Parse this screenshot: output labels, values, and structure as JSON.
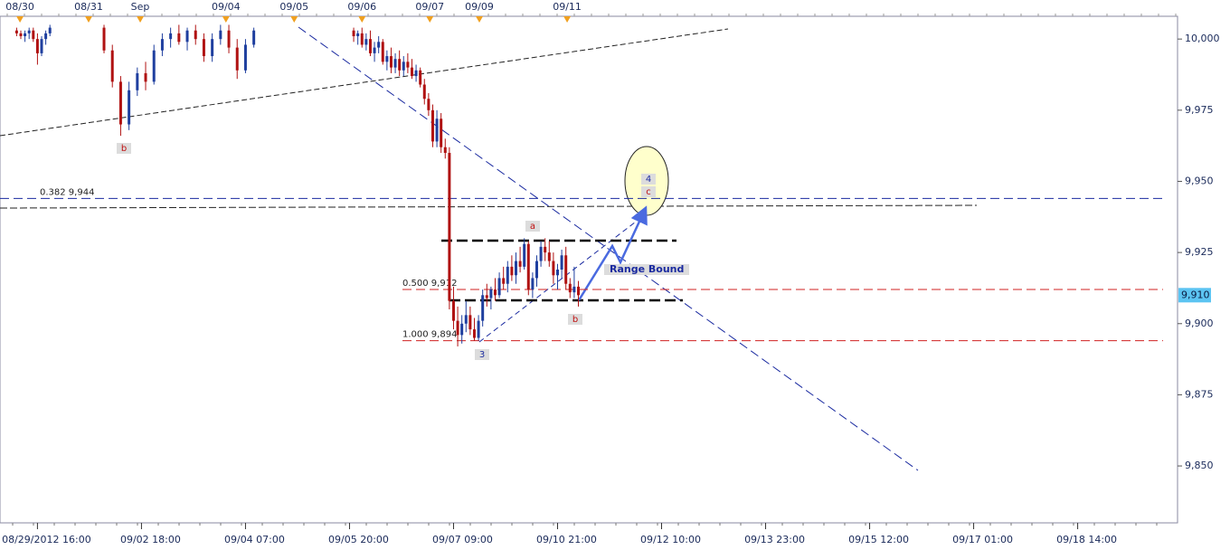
{
  "chart_data": {
    "type": "candlestick",
    "up_color": "#1f3f9f",
    "down_color": "#b01212",
    "xlim": [
      -9,
      274
    ],
    "ylim": [
      9830,
      10008
    ],
    "yticks": [
      {
        "value": 9850,
        "label": "9,850"
      },
      {
        "value": 9875,
        "label": "9,875"
      },
      {
        "value": 9900,
        "label": "9,900"
      },
      {
        "value": 9925,
        "label": "9,925"
      },
      {
        "value": 9950,
        "label": "9,950"
      },
      {
        "value": 9975,
        "label": "9,975"
      },
      {
        "value": 10000,
        "label": "10,000"
      }
    ],
    "xticks": [
      {
        "value": 0,
        "label": "08/29/2012 16:00"
      },
      {
        "value": 25,
        "label": "09/02 18:00"
      },
      {
        "value": 50,
        "label": "09/04 07:00"
      },
      {
        "value": 75,
        "label": "09/05 20:00"
      },
      {
        "value": 100,
        "label": "09/07 09:00"
      },
      {
        "value": 125,
        "label": "09/10 21:00"
      },
      {
        "value": 150,
        "label": "09/12 10:00"
      },
      {
        "value": 175,
        "label": "09/13 23:00"
      },
      {
        "value": 200,
        "label": "09/15 12:00"
      },
      {
        "value": 225,
        "label": "09/17 01:00"
      },
      {
        "value": 250,
        "label": "09/18 14:00"
      }
    ],
    "top_xticks": [
      {
        "value": -4.2,
        "label": "08/30"
      },
      {
        "value": 12.3,
        "label": "08/31"
      },
      {
        "value": 24.7,
        "label": "Sep"
      },
      {
        "value": 45.3,
        "label": "09/04"
      },
      {
        "value": 61.7,
        "label": "09/05"
      },
      {
        "value": 78,
        "label": "09/06"
      },
      {
        "value": 94.3,
        "label": "09/07"
      },
      {
        "value": 106.2,
        "label": "09/09"
      },
      {
        "value": 127.3,
        "label": "09/11"
      }
    ],
    "x": [
      -5,
      -4,
      -3,
      -2,
      -1,
      0,
      1,
      2,
      3,
      16,
      18,
      20,
      22,
      24,
      26,
      28,
      30,
      32,
      34,
      36,
      38,
      40,
      42,
      44,
      46,
      48,
      50,
      52,
      76,
      77,
      78,
      79,
      80,
      81,
      82,
      83,
      84,
      85,
      86,
      87,
      88,
      89,
      90,
      91,
      92,
      93,
      94,
      95,
      96,
      97,
      98,
      99,
      100,
      101,
      102,
      103,
      104,
      105,
      106,
      107,
      108,
      109,
      110,
      111,
      112,
      113,
      114,
      115,
      116,
      117,
      118,
      119,
      120,
      121,
      122,
      123,
      124,
      125,
      126,
      127,
      128,
      129,
      130
    ],
    "open": [
      10003,
      10002,
      10001,
      10002,
      10003,
      10000,
      9995,
      10000,
      10002,
      10004,
      9996,
      9985,
      9970,
      9982,
      9988,
      9985,
      9996,
      10000,
      10002,
      9999,
      10003,
      10000,
      9994,
      10000,
      10003,
      9997,
      9989,
      9998,
      10003,
      10001,
      10002,
      9998,
      10000,
      9995,
      9997,
      9999,
      9992,
      9994,
      9990,
      9993,
      9989,
      9992,
      9990,
      9987,
      9989,
      9984,
      9979,
      9975,
      9964,
      9972,
      9962,
      9960,
      9908,
      9901,
      9896,
      9900,
      9903,
      9898,
      9895,
      9901,
      9910,
      9909,
      9912,
      9910,
      9916,
      9914,
      9920,
      9917,
      9922,
      9920,
      9928,
      9912,
      9916,
      9922,
      9927,
      9925,
      9922,
      9917,
      9919,
      9924,
      9914,
      9911,
      9913
    ],
    "high": [
      10004,
      10003,
      10003,
      10004,
      10004,
      10002,
      10001,
      10003,
      10005,
      10005,
      9998,
      9987,
      9985,
      9990,
      9992,
      9998,
      10002,
      10004,
      10005,
      10004,
      10005,
      10002,
      10002,
      10005,
      10005,
      10000,
      10000,
      10004,
      10004,
      10003,
      10004,
      10002,
      10003,
      9999,
      10001,
      10000,
      9996,
      9997,
      9995,
      9996,
      9994,
      9995,
      9993,
      9991,
      9990,
      9986,
      9981,
      9977,
      9975,
      9974,
      9965,
      9962,
      9913,
      9906,
      9903,
      9908,
      9906,
      9902,
      9903,
      9912,
      9914,
      9913,
      9916,
      9918,
      9920,
      9922,
      9924,
      9925,
      9927,
      9930,
      9929,
      9918,
      9924,
      9929,
      9930,
      9929,
      9925,
      9921,
      9926,
      9927,
      9916,
      9920,
      9915
    ],
    "low": [
      10001,
      10000,
      9999,
      10000,
      9999,
      9991,
      9994,
      9998,
      10001,
      9995,
      9983,
      9966,
      9968,
      9980,
      9982,
      9984,
      9994,
      9997,
      9998,
      9996,
      9998,
      9992,
      9992,
      9998,
      9995,
      9986,
      9988,
      9997,
      9999,
      9998,
      9997,
      9996,
      9994,
      9992,
      9995,
      9991,
      9989,
      9988,
      9988,
      9987,
      9987,
      9988,
      9986,
      9985,
      9983,
      9977,
      9973,
      9962,
      9962,
      9960,
      9958,
      9905,
      9898,
      9892,
      9893,
      9897,
      9896,
      9894,
      9894,
      9899,
      9906,
      9905,
      9908,
      9909,
      9912,
      9911,
      9915,
      9914,
      9918,
      9919,
      9910,
      9909,
      9913,
      9920,
      9922,
      9920,
      9914,
      9912,
      9916,
      9912,
      9909,
      9909,
      9906
    ],
    "close": [
      10002,
      10001,
      10002,
      10003,
      10000,
      9995,
      10000,
      10002,
      10004,
      9996,
      9985,
      9970,
      9982,
      9988,
      9985,
      9996,
      10000,
      10002,
      9999,
      10003,
      10000,
      9994,
      10000,
      10003,
      9997,
      9989,
      9998,
      10003,
      10001,
      10002,
      9998,
      10000,
      9995,
      9997,
      9999,
      9992,
      9994,
      9990,
      9993,
      9989,
      9992,
      9990,
      9987,
      9989,
      9984,
      9979,
      9975,
      9964,
      9972,
      9962,
      9960,
      9908,
      9901,
      9896,
      9900,
      9903,
      9898,
      9895,
      9901,
      9910,
      9909,
      9912,
      9910,
      9916,
      9914,
      9920,
      9917,
      9922,
      9920,
      9928,
      9912,
      9916,
      9922,
      9927,
      9925,
      9922,
      9917,
      9919,
      9924,
      9914,
      9911,
      9913,
      9910
    ],
    "levels": [
      {
        "label": "0.382 9,944",
        "value": 9944,
        "color": "#1a2aa0"
      },
      {
        "label": "0.500 9,912",
        "value": 9912,
        "color": "#d02020"
      },
      {
        "label": "1.000 9,894",
        "value": 9894,
        "color": "#d02020"
      }
    ],
    "last_price": {
      "value": 9910,
      "label": "9,910"
    },
    "wave_labels": [
      "b",
      "a",
      "c",
      "4",
      "3",
      "b"
    ],
    "range_label": "Range Bound"
  }
}
